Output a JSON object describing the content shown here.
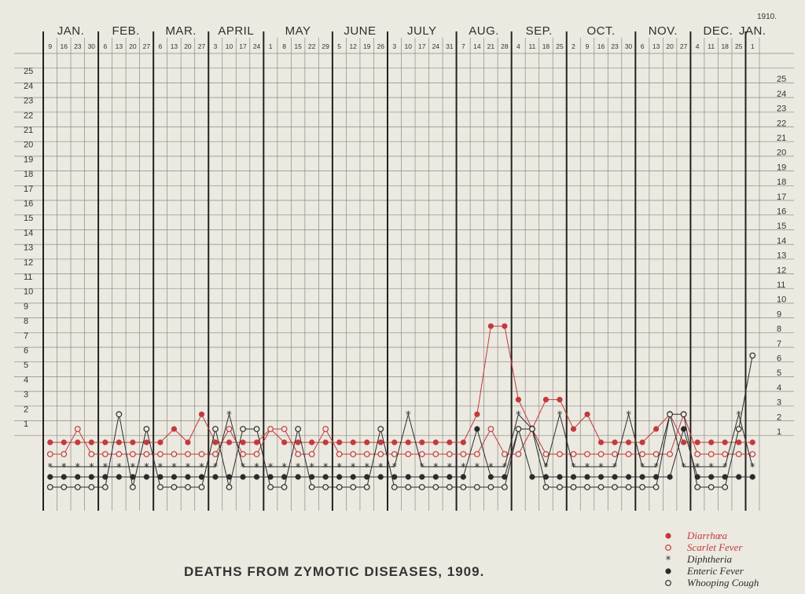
{
  "chart_data": {
    "type": "line",
    "title": "DEATHS FROM ZYMOTIC DISEASES, 1909.",
    "year_note": "1910.",
    "ylim": [
      1,
      25
    ],
    "y_ticks": [
      "1",
      "2",
      "3",
      "4",
      "5",
      "6",
      "7",
      "8",
      "9",
      "10",
      "11",
      "12",
      "13",
      "14",
      "15",
      "16",
      "17",
      "18",
      "19",
      "20",
      "21",
      "22",
      "23",
      "24",
      "25"
    ],
    "months": [
      "JAN.",
      "FEB.",
      "MAR.",
      "APRIL",
      "MAY",
      "JUNE",
      "JULY",
      "AUG.",
      "SEP.",
      "OCT.",
      "NOV.",
      "DEC.",
      "JAN."
    ],
    "weeks": [
      {
        "day": "9",
        "m": 0
      },
      {
        "day": "16",
        "m": 0
      },
      {
        "day": "23",
        "m": 0
      },
      {
        "day": "30",
        "m": 0
      },
      {
        "day": "6",
        "m": 1
      },
      {
        "day": "13",
        "m": 1
      },
      {
        "day": "20",
        "m": 1
      },
      {
        "day": "27",
        "m": 1
      },
      {
        "day": "6",
        "m": 2
      },
      {
        "day": "13",
        "m": 2
      },
      {
        "day": "20",
        "m": 2
      },
      {
        "day": "27",
        "m": 2
      },
      {
        "day": "3",
        "m": 3
      },
      {
        "day": "10",
        "m": 3
      },
      {
        "day": "17",
        "m": 3
      },
      {
        "day": "24",
        "m": 3
      },
      {
        "day": "1",
        "m": 4
      },
      {
        "day": "8",
        "m": 4
      },
      {
        "day": "15",
        "m": 4
      },
      {
        "day": "22",
        "m": 4
      },
      {
        "day": "29",
        "m": 4
      },
      {
        "day": "5",
        "m": 5
      },
      {
        "day": "12",
        "m": 5
      },
      {
        "day": "19",
        "m": 5
      },
      {
        "day": "26",
        "m": 5
      },
      {
        "day": "3",
        "m": 6
      },
      {
        "day": "10",
        "m": 6
      },
      {
        "day": "17",
        "m": 6
      },
      {
        "day": "24",
        "m": 6
      },
      {
        "day": "31",
        "m": 6
      },
      {
        "day": "7",
        "m": 7
      },
      {
        "day": "14",
        "m": 7
      },
      {
        "day": "21",
        "m": 7
      },
      {
        "day": "28",
        "m": 7
      },
      {
        "day": "4",
        "m": 8
      },
      {
        "day": "11",
        "m": 8
      },
      {
        "day": "18",
        "m": 8
      },
      {
        "day": "25",
        "m": 8
      },
      {
        "day": "2",
        "m": 9
      },
      {
        "day": "9",
        "m": 9
      },
      {
        "day": "16",
        "m": 9
      },
      {
        "day": "23",
        "m": 9
      },
      {
        "day": "30",
        "m": 9
      },
      {
        "day": "6",
        "m": 10
      },
      {
        "day": "13",
        "m": 10
      },
      {
        "day": "20",
        "m": 10
      },
      {
        "day": "27",
        "m": 10
      },
      {
        "day": "4",
        "m": 11
      },
      {
        "day": "11",
        "m": 11
      },
      {
        "day": "18",
        "m": 11
      },
      {
        "day": "25",
        "m": 11
      },
      {
        "day": "1",
        "m": 12
      }
    ],
    "series": [
      {
        "name": "Diarrhœa",
        "color": "#c23a3e",
        "marker": "filled",
        "values": [
          0,
          0,
          0,
          0,
          0,
          0,
          0,
          0,
          0,
          1,
          0,
          2,
          0,
          0,
          0,
          0,
          1,
          0,
          0,
          0,
          0,
          0,
          0,
          0,
          0,
          0,
          0,
          0,
          0,
          0,
          0,
          2,
          8,
          8,
          3,
          1,
          3,
          3,
          1,
          2,
          0,
          0,
          0,
          0,
          1,
          2,
          0,
          0,
          0,
          0,
          0,
          0
        ]
      },
      {
        "name": "Scarlet Fever",
        "color": "#c23a3e",
        "marker": "open",
        "values": [
          0,
          0,
          1,
          0,
          0,
          0,
          0,
          0,
          0,
          0,
          0,
          0,
          0,
          1,
          0,
          0,
          1,
          1,
          0,
          0,
          1,
          0,
          0,
          0,
          0,
          0,
          0,
          0,
          0,
          0,
          0,
          0,
          1,
          0,
          0,
          1,
          0,
          0,
          0,
          0,
          0,
          0,
          0,
          0,
          0,
          0,
          2,
          0,
          0,
          0,
          0,
          0
        ]
      },
      {
        "name": "Diphtheria",
        "color": "#2b2b2b",
        "marker": "star",
        "values": [
          0,
          0,
          0,
          0,
          0,
          0,
          0,
          0,
          0,
          0,
          0,
          0,
          0,
          2,
          0,
          0,
          0,
          0,
          0,
          0,
          0,
          0,
          0,
          0,
          0,
          0,
          2,
          0,
          0,
          0,
          0,
          0,
          0,
          0,
          2,
          1,
          0,
          2,
          0,
          0,
          0,
          0,
          2,
          0,
          0,
          2,
          0,
          0,
          0,
          0,
          2,
          0
        ]
      },
      {
        "name": "Enteric Fever",
        "color": "#2b2b2b",
        "marker": "dot",
        "values": [
          0,
          0,
          0,
          0,
          0,
          0,
          0,
          0,
          0,
          0,
          0,
          0,
          0,
          0,
          0,
          0,
          0,
          0,
          0,
          0,
          0,
          0,
          0,
          0,
          0,
          0,
          0,
          0,
          0,
          0,
          0,
          1,
          0,
          0,
          1,
          0,
          0,
          0,
          0,
          0,
          0,
          0,
          0,
          0,
          0,
          0,
          1,
          0,
          0,
          0,
          0,
          0
        ]
      },
      {
        "name": "Whooping Cough",
        "color": "#2b2b2b",
        "marker": "open",
        "values": [
          0,
          0,
          0,
          0,
          0,
          2,
          0,
          1,
          0,
          0,
          0,
          0,
          1,
          0,
          1,
          1,
          0,
          0,
          1,
          0,
          0,
          0,
          0,
          0,
          1,
          0,
          0,
          0,
          0,
          0,
          0,
          0,
          0,
          0,
          1,
          1,
          0,
          0,
          0,
          0,
          0,
          0,
          0,
          0,
          0,
          2,
          2,
          0,
          0,
          0,
          1,
          6
        ]
      }
    ],
    "legend_position": "bottom-right",
    "grid": true
  }
}
